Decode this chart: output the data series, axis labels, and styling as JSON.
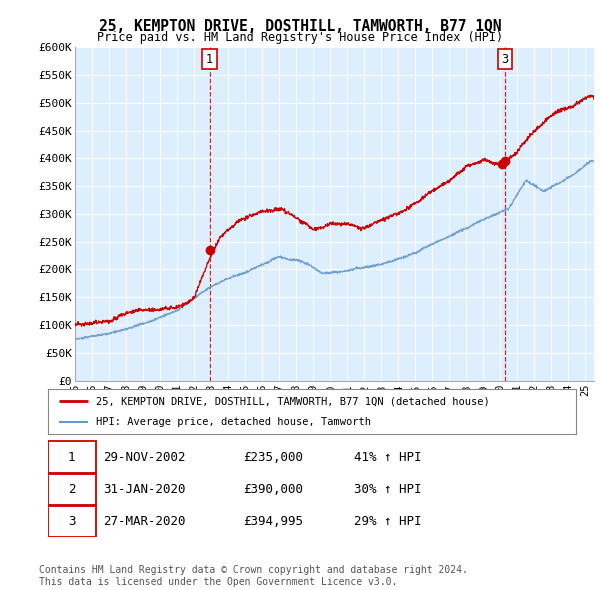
{
  "title": "25, KEMPTON DRIVE, DOSTHILL, TAMWORTH, B77 1QN",
  "subtitle": "Price paid vs. HM Land Registry's House Price Index (HPI)",
  "xlim_start": 1995.0,
  "xlim_end": 2025.5,
  "ylim": [
    0,
    600000
  ],
  "yticks": [
    0,
    50000,
    100000,
    150000,
    200000,
    250000,
    300000,
    350000,
    400000,
    450000,
    500000,
    550000,
    600000
  ],
  "ytick_labels": [
    "£0",
    "£50K",
    "£100K",
    "£150K",
    "£200K",
    "£250K",
    "£300K",
    "£350K",
    "£400K",
    "£450K",
    "£500K",
    "£550K",
    "£600K"
  ],
  "legend_line1": "25, KEMPTON DRIVE, DOSTHILL, TAMWORTH, B77 1QN (detached house)",
  "legend_line2": "HPI: Average price, detached house, Tamworth",
  "sale1_date": 2002.91,
  "sale1_price": 235000,
  "sale1_label": "1",
  "sale2_date": 2020.08,
  "sale2_price": 390000,
  "sale2_label": "2",
  "sale3_date": 2020.25,
  "sale3_price": 394995,
  "sale3_label": "3",
  "vline1_x": 2002.91,
  "vline2_x": 2020.25,
  "table_rows": [
    [
      "1",
      "29-NOV-2002",
      "£235,000",
      "41% ↑ HPI"
    ],
    [
      "2",
      "31-JAN-2020",
      "£390,000",
      "30% ↑ HPI"
    ],
    [
      "3",
      "27-MAR-2020",
      "£394,995",
      "29% ↑ HPI"
    ]
  ],
  "footer": "Contains HM Land Registry data © Crown copyright and database right 2024.\nThis data is licensed under the Open Government Licence v3.0.",
  "red_color": "#cc0000",
  "blue_color": "#6699cc",
  "chart_bg": "#ddeeff",
  "bg_color": "#ffffff"
}
